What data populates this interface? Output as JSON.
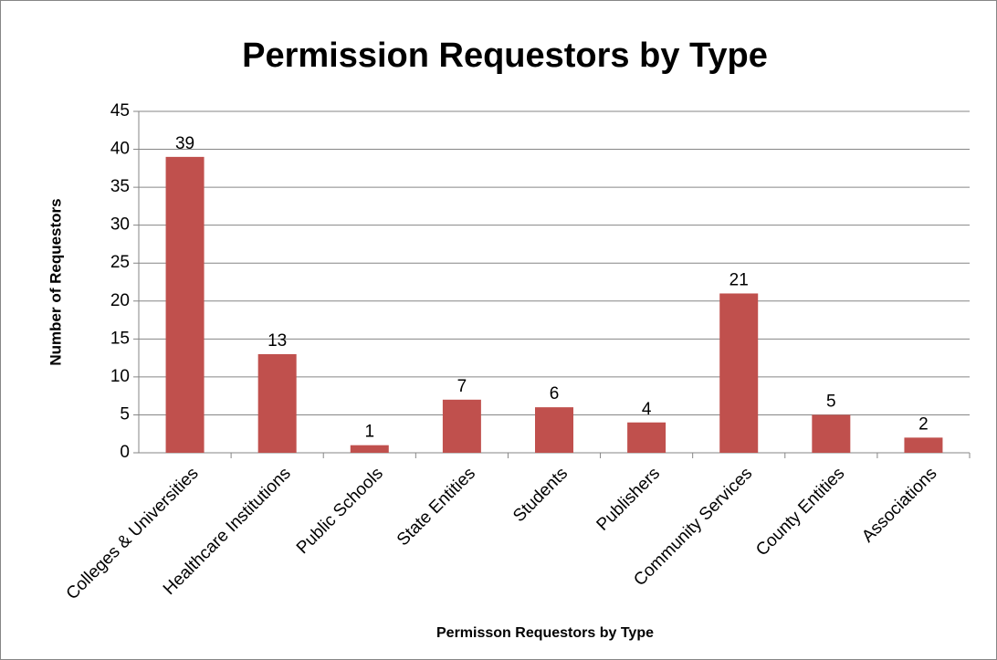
{
  "chart_data": {
    "type": "bar",
    "title": "Permission Requestors by Type",
    "x_label": "Permisson Requestors by Type",
    "y_label": "Number of Requestors",
    "categories": [
      "Colleges & Universities",
      "Healthcare Institutions",
      "Public Schools",
      "State Entities",
      "Students",
      "Publishers",
      "Community Services",
      "County Entities",
      "Associations"
    ],
    "values": [
      39,
      13,
      1,
      7,
      6,
      4,
      21,
      5,
      2
    ],
    "color": "#c0504d",
    "ylim": [
      0,
      45
    ],
    "yticks": [
      0,
      5,
      10,
      15,
      20,
      25,
      30,
      35,
      40,
      45
    ],
    "grid": true,
    "data_labels": true
  }
}
